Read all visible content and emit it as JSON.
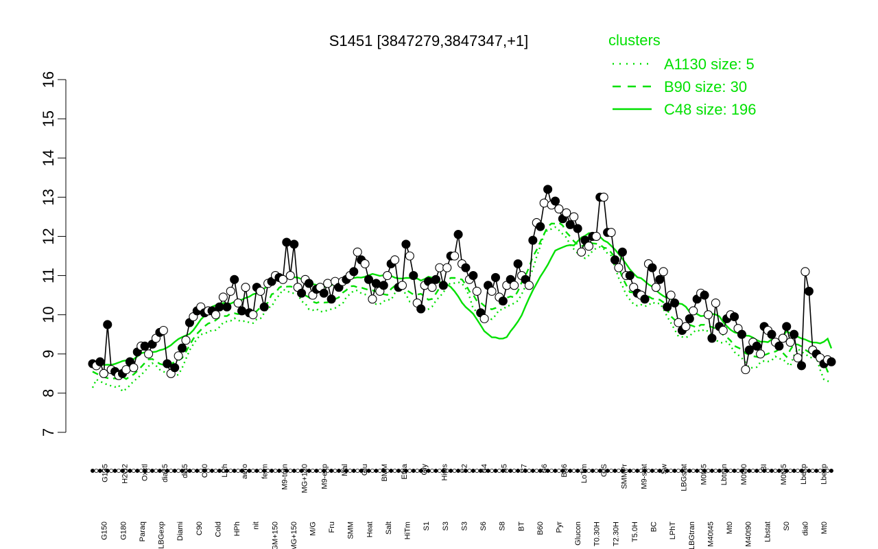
{
  "chart_data": {
    "type": "line",
    "title": "S1451 [3847279,3847347,+1]",
    "xlabel": "",
    "ylabel": "",
    "ylim": [
      7,
      16
    ],
    "yticks": [
      7,
      8,
      9,
      10,
      11,
      12,
      13,
      14,
      15,
      16
    ],
    "grid": false,
    "legend": {
      "title": "clusters",
      "placement": "top-right",
      "entries": [
        {
          "label": "A1130 size: 5",
          "style": "dotted"
        },
        {
          "label": "B90 size: 30",
          "style": "dashed"
        },
        {
          "label": "C48 size: 196",
          "style": "solid"
        }
      ]
    },
    "colors": {
      "cluster_lines": "#00e000",
      "points": "#000000",
      "open_fill": "#ffffff"
    },
    "x_tick_labels_bottom": [
      "G150",
      "G180",
      "Paraq",
      "LBGexp",
      "Diami",
      "C90",
      "Cold",
      "HPh",
      "nit",
      "GM+150",
      "MG+150",
      "M/G",
      "Fru",
      "SMM",
      "Heat",
      "Salt",
      "HiTm",
      "S1",
      "S3",
      "S3",
      "S6",
      "S8",
      "BT",
      "B60",
      "Pyr",
      "Glucon",
      "T0.30H",
      "T2.30H",
      "T5.0H",
      "BC",
      "LPhT",
      "LBGtran",
      "M40t45",
      "Mt0",
      "M40t90",
      "Lbstat",
      "S0",
      "dia0",
      "Mt0"
    ],
    "x_tick_labels_top": [
      "G135",
      "H2O2",
      "Oxctl",
      "dia15",
      "dia5",
      "C30",
      "LPh",
      "aero",
      "ferm",
      "M9-tran",
      "MG+120",
      "M9-exp",
      "Mal",
      "Glu",
      "BMM",
      "Etha",
      "Gly",
      "HiOs",
      "S2",
      "S4",
      "S5",
      "S7",
      "S6",
      "B36",
      "LoTm",
      "G/S",
      "SMMPr",
      "M9-stat",
      "Sw",
      "LBGstat",
      "M0t45",
      "Lbtran",
      "M0t90",
      "BI",
      "M0t45",
      "Lbexp",
      "Lbexp"
    ],
    "series": [
      {
        "name": "",
        "values": [
          8.75,
          8.7,
          8.8,
          8.5,
          9.75,
          8.6,
          8.55,
          8.45,
          8.5,
          8.6,
          8.8,
          8.65,
          9.05,
          9.2,
          9.2,
          9.0,
          9.25,
          9.4,
          9.55,
          9.6,
          8.75,
          8.5,
          8.65,
          8.95,
          9.15,
          9.35,
          9.8,
          9.95,
          10.1,
          10.2,
          10.05,
          10.1,
          10.1,
          10.0,
          10.2,
          10.45,
          10.2,
          10.6,
          10.9,
          10.3,
          10.1,
          10.7,
          10.05,
          10.0,
          10.7,
          10.6,
          10.2,
          10.8,
          10.85,
          11.0,
          10.95,
          10.9,
          11.85,
          11.0,
          11.8,
          10.7,
          10.55,
          10.9,
          10.8,
          10.5,
          10.65,
          10.7,
          10.55,
          10.8,
          10.4,
          10.85,
          10.7,
          10.85,
          10.9,
          11.0,
          11.1,
          11.6,
          11.4,
          11.3,
          10.9,
          10.4,
          10.8,
          10.6,
          10.75,
          11.0,
          11.3,
          11.4,
          10.7,
          10.75,
          11.8,
          11.5,
          11.0,
          10.3,
          10.15,
          10.75,
          10.85,
          10.7,
          10.9,
          11.2,
          10.75,
          11.2,
          11.5,
          11.5,
          12.05,
          11.3,
          11.2,
          10.9,
          11.0,
          10.6,
          10.05,
          9.9,
          10.75,
          10.6,
          10.95,
          10.45,
          10.35,
          10.75,
          10.9,
          10.75,
          11.3,
          11.0,
          10.9,
          10.75,
          11.9,
          12.35,
          12.25,
          12.85,
          13.2,
          12.8,
          12.9,
          12.7,
          12.45,
          12.6,
          12.3,
          12.5,
          12.2,
          11.6,
          11.9,
          11.75,
          12.0,
          12.0,
          13.0,
          13.0,
          12.1,
          12.1,
          11.4,
          11.2,
          11.6,
          11.0,
          11.0,
          10.7,
          10.55,
          10.5,
          10.4,
          11.3,
          11.2,
          10.7,
          10.9,
          11.1,
          10.2,
          10.5,
          10.3,
          9.8,
          9.6,
          9.7,
          9.9,
          10.1,
          10.4,
          10.55,
          10.5,
          10.0,
          9.4,
          10.3,
          9.7,
          9.6,
          9.9,
          10.0,
          9.95,
          9.65,
          9.5,
          8.6,
          9.1,
          9.3,
          9.2,
          9.0,
          9.7,
          9.6,
          9.5,
          9.3,
          9.2,
          9.4,
          9.7,
          9.3,
          9.5,
          8.9,
          8.7,
          11.1,
          10.6,
          9.1,
          9.0,
          8.9,
          8.75,
          8.85,
          8.8
        ]
      }
    ],
    "point_style": "alternating filled black and open white circles"
  }
}
